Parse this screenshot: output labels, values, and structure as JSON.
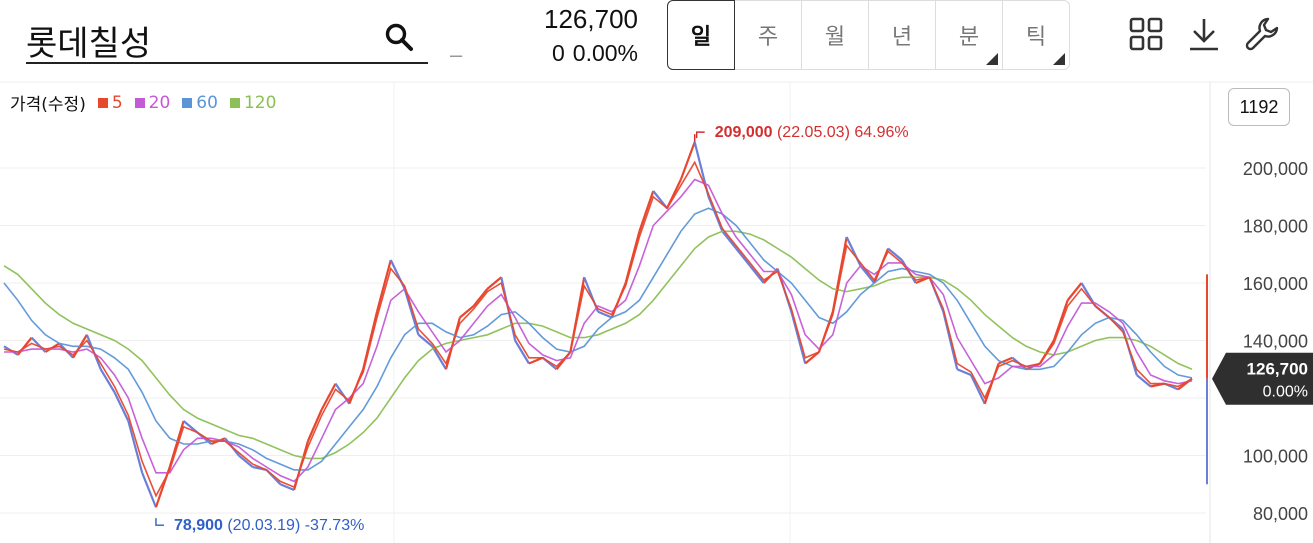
{
  "header": {
    "stock_name": "롯데칠성",
    "placeholder_dash": "–",
    "price": "126,700",
    "change_value": "0",
    "change_pct": "0.00%"
  },
  "periods": [
    {
      "label": "일",
      "selected": true,
      "submenu": false
    },
    {
      "label": "주",
      "selected": false,
      "submenu": false
    },
    {
      "label": "월",
      "selected": false,
      "submenu": false
    },
    {
      "label": "년",
      "selected": false,
      "submenu": false
    },
    {
      "label": "분",
      "selected": false,
      "submenu": true
    },
    {
      "label": "틱",
      "selected": false,
      "submenu": true
    }
  ],
  "toolbar": {
    "icons": [
      "grid-icon",
      "download-icon",
      "wrench-icon"
    ]
  },
  "legend": {
    "title": "가격(수정)",
    "items": [
      {
        "label": "5",
        "color": "#e8472e"
      },
      {
        "label": "20",
        "color": "#c45ad6"
      },
      {
        "label": "60",
        "color": "#5b95d8"
      },
      {
        "label": "120",
        "color": "#8cbf55"
      }
    ]
  },
  "count_badge": "1192",
  "chart_data": {
    "type": "line",
    "y_ticks": [
      "200,000",
      "180,000",
      "160,000",
      "140,000",
      "100,000",
      "80,000"
    ],
    "y_tick_values": [
      200000,
      180000,
      160000,
      140000,
      100000,
      80000
    ],
    "ylim": [
      75000,
      215000
    ],
    "current": {
      "price_label": "126,700",
      "pct_label": "0.00%",
      "value": 126700
    },
    "high": {
      "value_label": "209,000",
      "date_label": "(22.05.03)",
      "pct_label": "64.96%",
      "value": 209000,
      "index": 50
    },
    "low": {
      "value_label": "78,900",
      "date_label": "(20.03.19)",
      "pct_label": "-37.73%",
      "value": 78900,
      "index": 11
    },
    "colors": {
      "up": "#e8472e",
      "down": "#6b7fd9",
      "high": "#d32f2f",
      "low": "#2f5fc8"
    },
    "price_series": [
      138000,
      135000,
      141000,
      136000,
      139000,
      134000,
      142000,
      130000,
      122000,
      112000,
      94000,
      82000,
      96000,
      112000,
      108000,
      104000,
      106000,
      100000,
      96000,
      95000,
      90000,
      88000,
      105000,
      116000,
      125000,
      118000,
      130000,
      150000,
      168000,
      158000,
      142000,
      138000,
      130000,
      148000,
      152000,
      158000,
      162000,
      140000,
      132000,
      134000,
      130000,
      136000,
      162000,
      150000,
      148000,
      160000,
      178000,
      192000,
      186000,
      196000,
      209000,
      190000,
      178000,
      172000,
      166000,
      160000,
      165000,
      150000,
      132000,
      136000,
      150000,
      176000,
      166000,
      160000,
      172000,
      168000,
      160000,
      162000,
      150000,
      130000,
      128000,
      118000,
      132000,
      134000,
      130000,
      132000,
      140000,
      154000,
      160000,
      152000,
      148000,
      144000,
      128000,
      124000,
      125000,
      123000,
      126700
    ],
    "series": [
      {
        "name": "5",
        "values": [
          137000,
          136000,
          139000,
          137000,
          138000,
          135000,
          140000,
          132000,
          124000,
          114000,
          98000,
          86000,
          95000,
          110000,
          108000,
          105000,
          105000,
          101000,
          97000,
          95000,
          91000,
          89000,
          103000,
          114000,
          123000,
          119000,
          129000,
          148000,
          165000,
          159000,
          144000,
          139000,
          132000,
          146000,
          151000,
          157000,
          160000,
          142000,
          134000,
          134000,
          131000,
          136000,
          159000,
          151000,
          149000,
          159000,
          176000,
          190000,
          186000,
          194000,
          202000,
          191000,
          179000,
          173000,
          167000,
          161000,
          164000,
          151000,
          134000,
          136000,
          149000,
          173000,
          167000,
          161000,
          171000,
          167000,
          161000,
          162000,
          151000,
          132000,
          129000,
          120000,
          131000,
          133000,
          131000,
          132000,
          139000,
          152000,
          158000,
          152000,
          148000,
          143000,
          130000,
          125000,
          125000,
          124000,
          126700
        ]
      },
      {
        "name": "20",
        "values": [
          136000,
          136000,
          137000,
          137000,
          137000,
          136000,
          137000,
          134000,
          128000,
          120000,
          106000,
          94000,
          94000,
          102000,
          106000,
          106000,
          105000,
          103000,
          99000,
          96000,
          93000,
          91000,
          96000,
          106000,
          116000,
          120000,
          125000,
          138000,
          154000,
          158000,
          150000,
          143000,
          136000,
          140000,
          146000,
          152000,
          156000,
          148000,
          139000,
          135000,
          133000,
          134000,
          146000,
          152000,
          150000,
          154000,
          166000,
          180000,
          185000,
          190000,
          196000,
          194000,
          184000,
          176000,
          170000,
          164000,
          164000,
          156000,
          142000,
          137000,
          142000,
          160000,
          166000,
          163000,
          167000,
          167000,
          163000,
          162000,
          156000,
          141000,
          133000,
          125000,
          127000,
          131000,
          131000,
          131000,
          135000,
          145000,
          153000,
          153000,
          150000,
          146000,
          136000,
          128000,
          126000,
          125000,
          126000
        ]
      },
      {
        "name": "60",
        "values": [
          160000,
          154000,
          147000,
          142000,
          139000,
          138000,
          138000,
          137000,
          134000,
          130000,
          122000,
          112000,
          106000,
          104000,
          104000,
          105000,
          105000,
          104000,
          102000,
          99000,
          97000,
          95000,
          95000,
          98000,
          104000,
          110000,
          116000,
          124000,
          134000,
          142000,
          146000,
          146000,
          143000,
          141000,
          142000,
          145000,
          149000,
          150000,
          146000,
          141000,
          137000,
          136000,
          138000,
          144000,
          148000,
          150000,
          154000,
          162000,
          170000,
          178000,
          184000,
          186000,
          184000,
          180000,
          174000,
          168000,
          164000,
          160000,
          154000,
          148000,
          146000,
          150000,
          156000,
          160000,
          164000,
          165000,
          164000,
          163000,
          160000,
          154000,
          146000,
          138000,
          133000,
          131000,
          130000,
          130000,
          131000,
          136000,
          142000,
          146000,
          148000,
          147000,
          142000,
          136000,
          131000,
          128000,
          127000
        ]
      },
      {
        "name": "120",
        "values": [
          166000,
          163000,
          158000,
          153000,
          149000,
          146000,
          144000,
          142000,
          140000,
          137000,
          133000,
          127000,
          121000,
          116000,
          113000,
          111000,
          109000,
          107000,
          106000,
          104000,
          102000,
          100000,
          99000,
          99000,
          101000,
          104000,
          108000,
          113000,
          120000,
          127000,
          133000,
          137000,
          139000,
          140000,
          141000,
          142000,
          144000,
          146000,
          146000,
          145000,
          143000,
          141000,
          141000,
          142000,
          144000,
          146000,
          149000,
          154000,
          160000,
          166000,
          172000,
          176000,
          178000,
          178000,
          177000,
          175000,
          172000,
          169000,
          165000,
          161000,
          158000,
          157000,
          158000,
          159000,
          161000,
          162000,
          162000,
          162000,
          161000,
          158000,
          154000,
          149000,
          145000,
          141000,
          138000,
          136000,
          135000,
          136000,
          138000,
          140000,
          141000,
          141000,
          140000,
          138000,
          135000,
          132000,
          130000
        ]
      }
    ]
  }
}
